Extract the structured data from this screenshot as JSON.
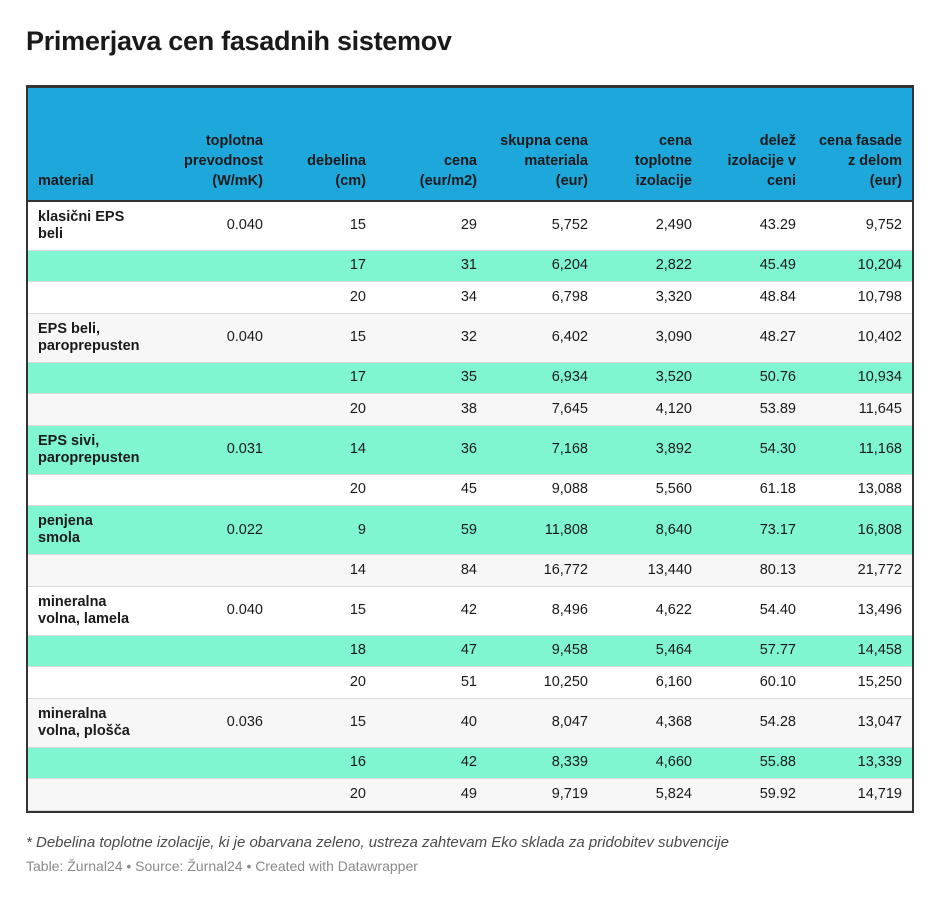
{
  "title": "Primerjava cen fasadnih sistemov",
  "chart_data": {
    "type": "table",
    "columns": [
      {
        "key": "material",
        "label": "material",
        "align": "left"
      },
      {
        "key": "conductivity",
        "label": "toplotna prevodnost (W/mK)",
        "align": "right"
      },
      {
        "key": "thickness",
        "label": "debelina (cm)",
        "align": "right"
      },
      {
        "key": "price",
        "label": "cena (eur/m2)",
        "align": "right"
      },
      {
        "key": "material_total",
        "label": "skupna cena materiala (eur)",
        "align": "right"
      },
      {
        "key": "insulation_price",
        "label": "cena toplotne izolacije",
        "align": "right"
      },
      {
        "key": "insulation_share",
        "label": "delež izolacije v ceni",
        "align": "right"
      },
      {
        "key": "facade_price",
        "label": "cena fasade z delom (eur)",
        "align": "right"
      }
    ],
    "rows": [
      {
        "material": "klasični EPS beli",
        "conductivity": "0.040",
        "thickness": "15",
        "price": "29",
        "material_total": "5,752",
        "insulation_price": "2,490",
        "insulation_share": "43.29",
        "facade_price": "9,752",
        "highlight": false
      },
      {
        "material": "",
        "conductivity": "",
        "thickness": "17",
        "price": "31",
        "material_total": "6,204",
        "insulation_price": "2,822",
        "insulation_share": "45.49",
        "facade_price": "10,204",
        "highlight": true
      },
      {
        "material": "",
        "conductivity": "",
        "thickness": "20",
        "price": "34",
        "material_total": "6,798",
        "insulation_price": "3,320",
        "insulation_share": "48.84",
        "facade_price": "10,798",
        "highlight": false
      },
      {
        "material": "EPS beli, paroprepusten",
        "conductivity": "0.040",
        "thickness": "15",
        "price": "32",
        "material_total": "6,402",
        "insulation_price": "3,090",
        "insulation_share": "48.27",
        "facade_price": "10,402",
        "highlight": false
      },
      {
        "material": "",
        "conductivity": "",
        "thickness": "17",
        "price": "35",
        "material_total": "6,934",
        "insulation_price": "3,520",
        "insulation_share": "50.76",
        "facade_price": "10,934",
        "highlight": true
      },
      {
        "material": "",
        "conductivity": "",
        "thickness": "20",
        "price": "38",
        "material_total": "7,645",
        "insulation_price": "4,120",
        "insulation_share": "53.89",
        "facade_price": "11,645",
        "highlight": false
      },
      {
        "material": "EPS sivi, paroprepusten",
        "conductivity": "0.031",
        "thickness": "14",
        "price": "36",
        "material_total": "7,168",
        "insulation_price": "3,892",
        "insulation_share": "54.30",
        "facade_price": "11,168",
        "highlight": true
      },
      {
        "material": "",
        "conductivity": "",
        "thickness": "20",
        "price": "45",
        "material_total": "9,088",
        "insulation_price": "5,560",
        "insulation_share": "61.18",
        "facade_price": "13,088",
        "highlight": false
      },
      {
        "material": "penjena smola",
        "conductivity": "0.022",
        "thickness": "9",
        "price": "59",
        "material_total": "11,808",
        "insulation_price": "8,640",
        "insulation_share": "73.17",
        "facade_price": "16,808",
        "highlight": true
      },
      {
        "material": "",
        "conductivity": "",
        "thickness": "14",
        "price": "84",
        "material_total": "16,772",
        "insulation_price": "13,440",
        "insulation_share": "80.13",
        "facade_price": "21,772",
        "highlight": false
      },
      {
        "material": "mineralna volna, lamela",
        "conductivity": "0.040",
        "thickness": "15",
        "price": "42",
        "material_total": "8,496",
        "insulation_price": "4,622",
        "insulation_share": "54.40",
        "facade_price": "13,496",
        "highlight": false
      },
      {
        "material": "",
        "conductivity": "",
        "thickness": "18",
        "price": "47",
        "material_total": "9,458",
        "insulation_price": "5,464",
        "insulation_share": "57.77",
        "facade_price": "14,458",
        "highlight": true
      },
      {
        "material": "",
        "conductivity": "",
        "thickness": "20",
        "price": "51",
        "material_total": "10,250",
        "insulation_price": "6,160",
        "insulation_share": "60.10",
        "facade_price": "15,250",
        "highlight": false
      },
      {
        "material": "mineralna volna, plošča",
        "conductivity": "0.036",
        "thickness": "15",
        "price": "40",
        "material_total": "8,047",
        "insulation_price": "4,368",
        "insulation_share": "54.28",
        "facade_price": "13,047",
        "highlight": false
      },
      {
        "material": "",
        "conductivity": "",
        "thickness": "16",
        "price": "42",
        "material_total": "8,339",
        "insulation_price": "4,660",
        "insulation_share": "55.88",
        "facade_price": "13,339",
        "highlight": true
      },
      {
        "material": "",
        "conductivity": "",
        "thickness": "20",
        "price": "49",
        "material_total": "9,719",
        "insulation_price": "5,824",
        "insulation_share": "59.92",
        "facade_price": "14,719",
        "highlight": false
      }
    ]
  },
  "colors": {
    "header_bg": "#1da7db",
    "highlight_row": "#80f5d2",
    "stripe_row": "#f7f7f7"
  },
  "footnote": "* Debelina toplotne izolacije, ki je obarvana zeleno, ustreza zahtevam Eko sklada za pridobitev subvencije",
  "source": "Table: Žurnal24 • Source: Žurnal24 • Created with Datawrapper"
}
